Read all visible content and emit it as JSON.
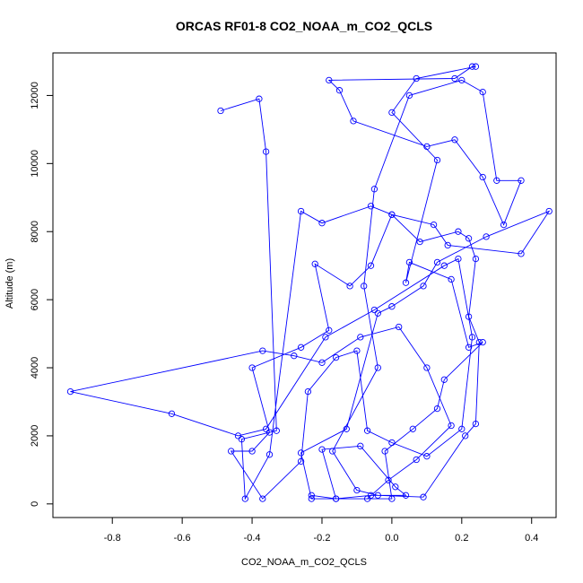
{
  "chart_data": {
    "type": "line",
    "title": "ORCAS RF01-8 CO2_NOAA_m_CO2_QCLS",
    "xlabel": "CO2_NOAA_m_CO2_QCLS",
    "ylabel": "Altitude (m)",
    "xlim": [
      -0.97,
      0.47
    ],
    "ylim": [
      -400,
      13250
    ],
    "x_ticks": [
      -0.8,
      -0.6,
      -0.4,
      -0.2,
      0.0,
      0.2,
      0.4
    ],
    "x_tick_labels": [
      "-0.8",
      "-0.6",
      "-0.4",
      "-0.2",
      "0.0",
      "0.2",
      "0.4"
    ],
    "y_ticks": [
      0,
      2000,
      4000,
      6000,
      8000,
      10000,
      12000
    ],
    "y_tick_labels": [
      "0",
      "2000",
      "4000",
      "6000",
      "8000",
      "10000",
      "12000"
    ],
    "grid": false,
    "marker": "open-circle",
    "line_color": "#0000ff",
    "series": [
      {
        "values": [
          [
            -0.49,
            11550
          ],
          [
            -0.38,
            11900
          ],
          [
            -0.36,
            10350
          ],
          [
            -0.33,
            2150
          ],
          [
            -0.43,
            1900
          ],
          [
            -0.42,
            150
          ],
          [
            -0.35,
            1450
          ],
          [
            -0.26,
            8600
          ],
          [
            -0.2,
            8250
          ],
          [
            -0.06,
            8750
          ],
          [
            0.0,
            8500
          ],
          [
            0.08,
            7700
          ],
          [
            0.19,
            8000
          ],
          [
            0.22,
            7800
          ],
          [
            0.24,
            7200
          ],
          [
            0.22,
            5500
          ],
          [
            0.25,
            4750
          ],
          [
            0.24,
            2350
          ],
          [
            0.21,
            2000
          ],
          [
            0.09,
            200
          ],
          [
            -0.04,
            250
          ],
          [
            -0.1,
            400
          ],
          [
            -0.17,
            1550
          ],
          [
            -0.04,
            4000
          ],
          [
            -0.08,
            6400
          ],
          [
            -0.05,
            9250
          ],
          [
            0.05,
            12000
          ],
          [
            0.2,
            12450
          ],
          [
            0.26,
            12100
          ],
          [
            0.3,
            9500
          ],
          [
            0.37,
            9500
          ],
          [
            0.32,
            8200
          ],
          [
            0.26,
            9600
          ],
          [
            0.18,
            10700
          ],
          [
            0.1,
            10500
          ],
          [
            -0.11,
            11250
          ],
          [
            -0.15,
            12150
          ],
          [
            -0.18,
            12450
          ],
          [
            0.18,
            12500
          ],
          [
            0.23,
            12850
          ],
          [
            0.24,
            12850
          ],
          [
            0.07,
            12500
          ],
          [
            0.0,
            11500
          ],
          [
            0.13,
            10100
          ],
          [
            0.04,
            6500
          ],
          [
            0.05,
            7100
          ],
          [
            0.17,
            6600
          ],
          [
            0.22,
            4600
          ],
          [
            0.26,
            4750
          ],
          [
            0.15,
            3650
          ],
          [
            0.13,
            2800
          ],
          [
            0.06,
            2200
          ],
          [
            -0.02,
            1550
          ],
          [
            0.0,
            150
          ],
          [
            -0.23,
            150
          ],
          [
            -0.26,
            1500
          ],
          [
            -0.13,
            2200
          ],
          [
            -0.04,
            5600
          ],
          [
            0.0,
            5800
          ],
          [
            0.09,
            6400
          ],
          [
            0.13,
            7100
          ],
          [
            0.27,
            7850
          ],
          [
            0.45,
            8600
          ],
          [
            0.37,
            7350
          ],
          [
            0.16,
            7600
          ],
          [
            0.12,
            8200
          ],
          [
            0.0,
            8500
          ],
          [
            -0.06,
            7000
          ],
          [
            -0.12,
            6400
          ],
          [
            -0.22,
            7050
          ],
          [
            -0.18,
            5100
          ],
          [
            -0.26,
            4600
          ],
          [
            -0.4,
            4000
          ],
          [
            -0.35,
            2100
          ],
          [
            -0.4,
            1550
          ],
          [
            -0.46,
            1550
          ],
          [
            -0.37,
            150
          ],
          [
            -0.26,
            1250
          ],
          [
            -0.24,
            3300
          ],
          [
            -0.16,
            4300
          ],
          [
            -0.1,
            4500
          ],
          [
            -0.07,
            2150
          ],
          [
            0.0,
            1800
          ],
          [
            0.1,
            1400
          ],
          [
            0.2,
            2200
          ],
          [
            0.23,
            4900
          ],
          [
            0.19,
            7200
          ],
          [
            0.15,
            7000
          ],
          [
            -0.05,
            5700
          ],
          [
            -0.19,
            4900
          ],
          [
            -0.36,
            2200
          ],
          [
            -0.44,
            2000
          ],
          [
            -0.63,
            2650
          ],
          [
            -0.92,
            3300
          ],
          [
            -0.37,
            4500
          ],
          [
            -0.28,
            4350
          ],
          [
            -0.2,
            4150
          ],
          [
            -0.09,
            4900
          ],
          [
            0.02,
            5200
          ],
          [
            0.1,
            4000
          ],
          [
            0.17,
            2300
          ],
          [
            0.07,
            1300
          ],
          [
            -0.01,
            700
          ],
          [
            -0.07,
            150
          ],
          [
            -0.16,
            150
          ],
          [
            -0.2,
            1600
          ],
          [
            -0.09,
            1700
          ],
          [
            0.01,
            500
          ],
          [
            0.04,
            250
          ],
          [
            -0.06,
            250
          ],
          [
            -0.16,
            150
          ],
          [
            -0.23,
            250
          ]
        ]
      }
    ]
  }
}
